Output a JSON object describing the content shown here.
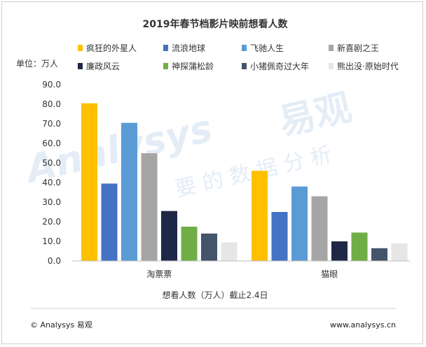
{
  "chart_data": {
    "type": "bar",
    "title": "2019年春节档影片映前想看人数",
    "unit_label": "单位：万人",
    "xlabel": "想看人数（万人）截止2.4日",
    "ylim": [
      0,
      90
    ],
    "yticks": [
      "0.0",
      "10.0",
      "20.0",
      "30.0",
      "40.0",
      "50.0",
      "60.0",
      "70.0",
      "80.0",
      "90.0"
    ],
    "grid": false,
    "legend_position": "top",
    "categories": [
      "淘票票",
      "猫眼"
    ],
    "series": [
      {
        "name": "疯狂的外星人",
        "color": "#FFC000",
        "values": [
          80.5,
          46.0
        ]
      },
      {
        "name": "流浪地球",
        "color": "#4472C4",
        "values": [
          39.5,
          25.0
        ]
      },
      {
        "name": "飞驰人生",
        "color": "#5B9BD5",
        "values": [
          70.5,
          38.0
        ]
      },
      {
        "name": "新喜剧之王",
        "color": "#A5A5A5",
        "values": [
          55.0,
          33.0
        ]
      },
      {
        "name": "廉政风云",
        "color": "#1F2747",
        "values": [
          25.5,
          10.0
        ]
      },
      {
        "name": "神探蒲松龄",
        "color": "#70AD47",
        "values": [
          17.5,
          14.5
        ]
      },
      {
        "name": "小猪佩奇过大年",
        "color": "#44546A",
        "values": [
          14.0,
          6.5
        ]
      },
      {
        "name": "熊出没·原始时代",
        "color": "#E7E6E6",
        "values": [
          9.5,
          9.0
        ]
      }
    ]
  },
  "watermark": {
    "brand_cn": "易观",
    "brand_en": "Analysys",
    "slogan": "要 的 数 据 分 析"
  },
  "footer": {
    "left": "© Analysys 易观",
    "right": "www.analysys.cn"
  }
}
